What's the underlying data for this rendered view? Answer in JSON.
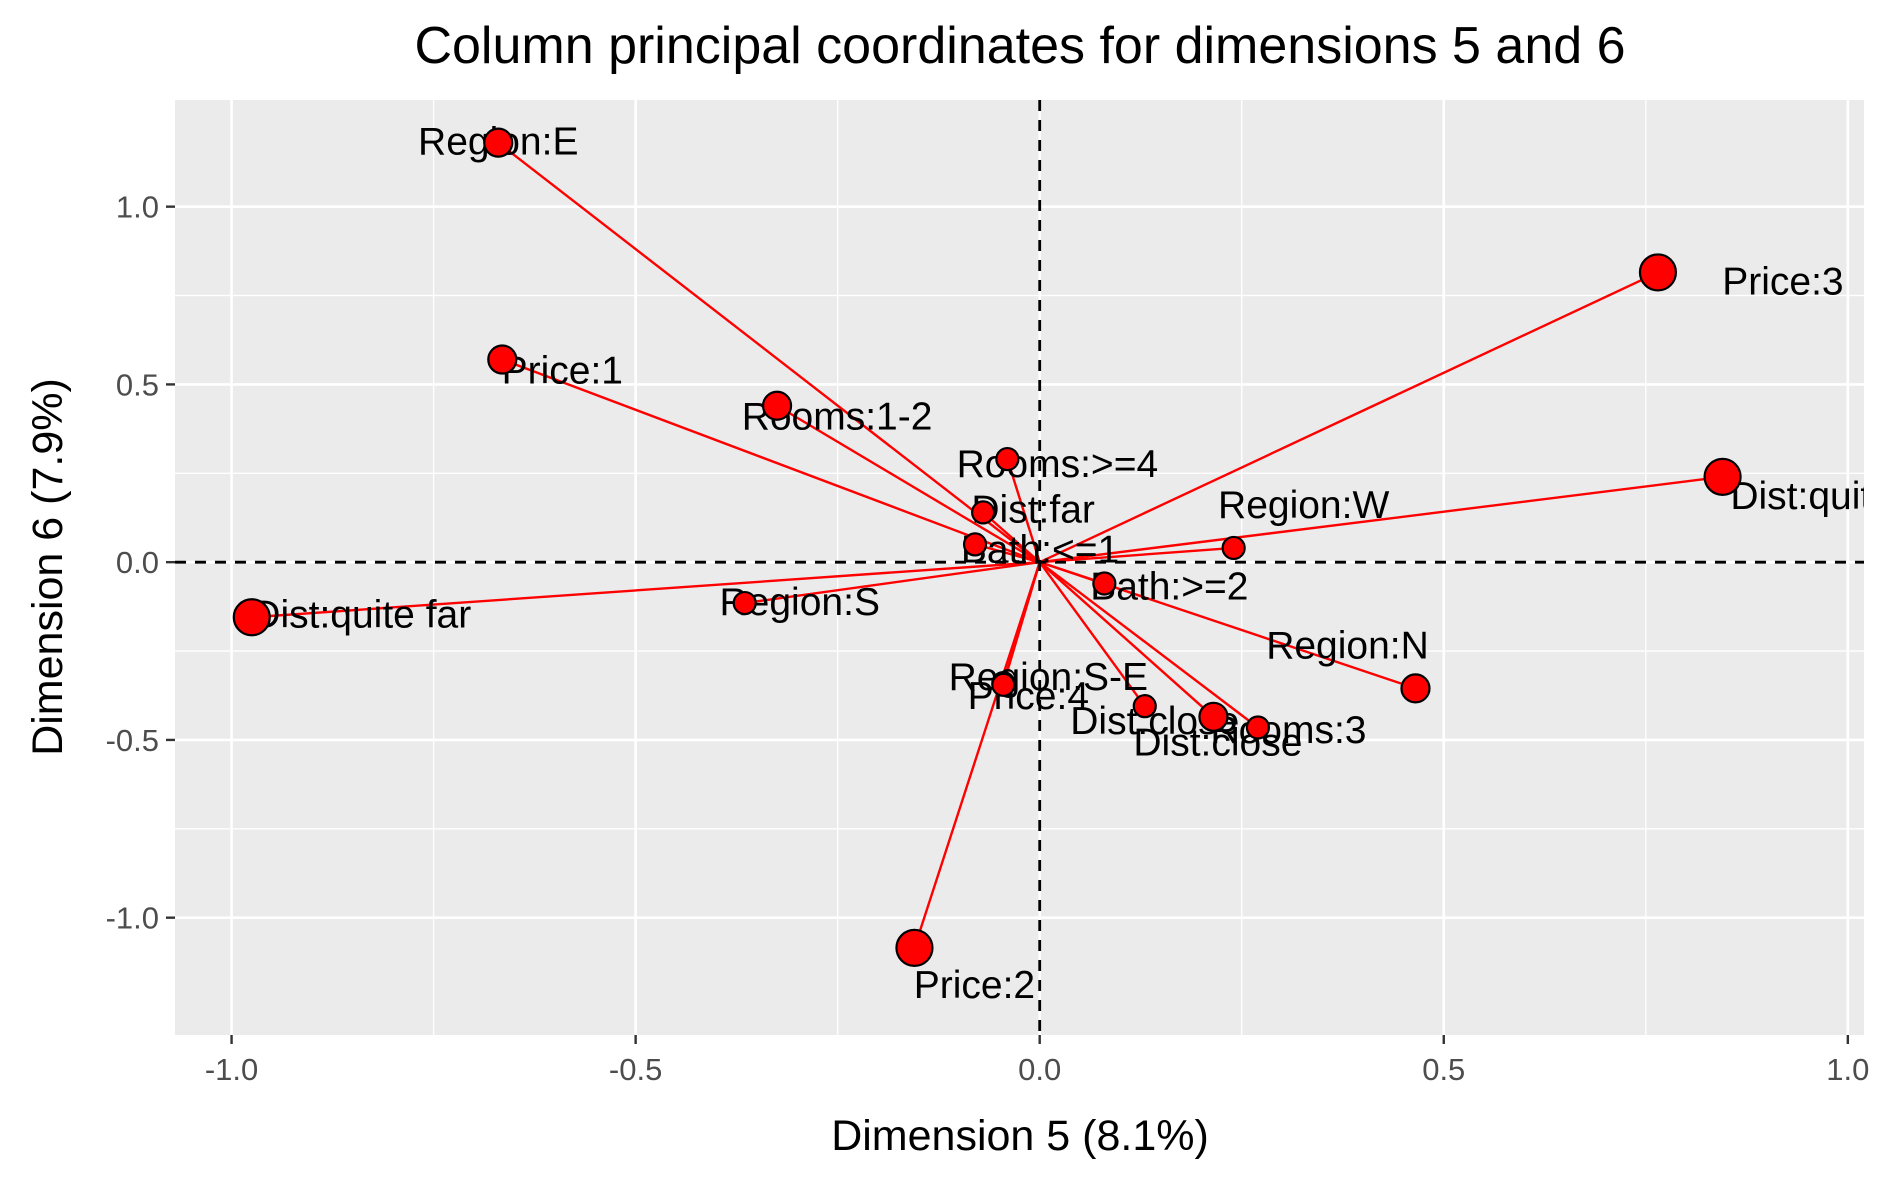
{
  "chart_data": {
    "type": "scatter",
    "title": "Column principal coordinates for dimensions 5 and 6",
    "xlabel": "Dimension 5 (8.1%)",
    "ylabel": "Dimension 6 (7.9%)",
    "xlim": [
      -1.07,
      1.02
    ],
    "ylim": [
      -1.33,
      1.3
    ],
    "xticks": [
      -1.0,
      -0.5,
      0.0,
      0.5,
      1.0
    ],
    "xtick_labels": [
      "-1.0",
      "-0.5",
      "0.0",
      "0.5",
      "1.0"
    ],
    "yticks": [
      -1.0,
      -0.5,
      0.0,
      0.5,
      1.0
    ],
    "ytick_labels": [
      "-1.0",
      "-0.5",
      "0.0",
      "0.5",
      "1.0"
    ],
    "grid": true,
    "reference_lines": {
      "x": 0,
      "y": 0,
      "style": "dashed"
    },
    "vectors_from_origin": true,
    "colors": {
      "point_fill": "#ff0000",
      "point_stroke": "#000000",
      "vector": "#ff0000",
      "panel": "#ebebeb",
      "grid": "#ffffff"
    },
    "points": [
      {
        "label": "Region:E",
        "x": -0.67,
        "y": 1.18,
        "size": 2
      },
      {
        "label": "Price:3",
        "x": 0.765,
        "y": 0.815,
        "size": 3
      },
      {
        "label": "Price:1",
        "x": -0.665,
        "y": 0.57,
        "size": 2
      },
      {
        "label": "Rooms:1-2",
        "x": -0.325,
        "y": 0.44,
        "size": 2
      },
      {
        "label": "Rooms:>=4",
        "x": -0.04,
        "y": 0.29,
        "size": 1
      },
      {
        "label": "Dist:quite close",
        "x": 0.845,
        "y": 0.24,
        "size": 3
      },
      {
        "label": "Dist:far",
        "x": -0.07,
        "y": 0.14,
        "size": 1
      },
      {
        "label": "Region:W",
        "x": 0.24,
        "y": 0.04,
        "size": 1
      },
      {
        "label": "Bath:<=1",
        "x": -0.08,
        "y": 0.05,
        "size": 1
      },
      {
        "label": "Bath:>=2",
        "x": 0.08,
        "y": -0.06,
        "size": 1
      },
      {
        "label": "Dist:quite far",
        "x": -0.975,
        "y": -0.155,
        "size": 3
      },
      {
        "label": "Region:S",
        "x": -0.365,
        "y": -0.115,
        "size": 1
      },
      {
        "label": "Region:N",
        "x": 0.465,
        "y": -0.355,
        "size": 2
      },
      {
        "label": "Price:4",
        "x": -0.045,
        "y": -0.34,
        "size": 1
      },
      {
        "label": "Region:S-E",
        "x": -0.045,
        "y": -0.345,
        "size": 1
      },
      {
        "label": "Rooms:3",
        "x": 0.215,
        "y": -0.435,
        "size": 2
      },
      {
        "label": "Dist:close",
        "x": 0.27,
        "y": -0.465,
        "size": 1
      },
      {
        "label": "Dist:close",
        "x": 0.13,
        "y": -0.405,
        "size": 1
      },
      {
        "label": "Price:2",
        "x": -0.155,
        "y": -1.085,
        "size": 3
      }
    ]
  }
}
